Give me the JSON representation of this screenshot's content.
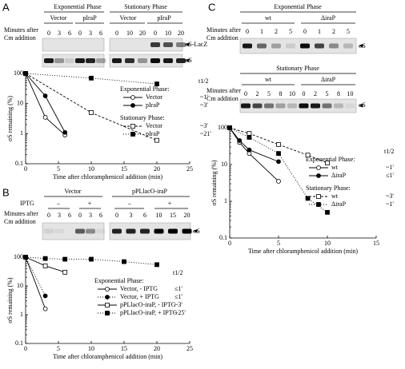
{
  "panels": [
    {
      "label": "A",
      "gel": {
        "headers": [
          "Exponential Phase",
          "Stationary Phase"
        ],
        "groups": [
          "Vector",
          "pIraP",
          "Vector",
          "pIraP"
        ],
        "row_label": [
          "Minutes after",
          "Cm addition"
        ],
        "lanes": [
          0,
          3,
          6,
          0,
          3,
          6,
          0,
          10,
          20,
          0,
          10,
          20
        ],
        "bands": [
          "σS-LacZ",
          "σS"
        ]
      }
    },
    {
      "label": "B",
      "gel": {
        "groups": [
          "Vector",
          "pPLlacO-iraP"
        ],
        "iptg_label": "IPTG",
        "iptg": [
          "–",
          "+",
          "–",
          "+"
        ],
        "row_label": [
          "Minutes after",
          "Cm addition"
        ],
        "lanes": [
          0,
          3,
          6,
          0,
          3,
          6,
          0,
          3,
          6,
          10,
          15,
          20
        ],
        "bands": [
          "σS"
        ]
      }
    },
    {
      "label": "C",
      "gels": [
        {
          "headers": [
            "Exponential Phase"
          ],
          "groups": [
            "wt",
            "ΔiraP"
          ],
          "row_label": [
            "Minutes after",
            "Cm addition"
          ],
          "lanes": [
            0,
            1,
            2,
            5,
            0,
            1,
            2,
            5
          ],
          "bands": [
            "σS"
          ]
        },
        {
          "headers": [
            "Stationary Phase"
          ],
          "groups": [
            "wt",
            "ΔiraP"
          ],
          "row_label": [
            "Minutes after",
            "Cm addition"
          ],
          "lanes": [
            0,
            2,
            5,
            8,
            10,
            0,
            2,
            5,
            8,
            10
          ],
          "bands": [
            "σS"
          ]
        }
      ]
    }
  ],
  "chart_data": [
    {
      "type": "line",
      "y_label": "σS remaining (%)",
      "x_label": "Time after chloramphenicol addition (min)",
      "y_scale": "log",
      "xlim": [
        0,
        25
      ],
      "xticks": [
        0,
        5,
        10,
        15,
        20,
        25
      ],
      "ylim": [
        0.1,
        100
      ],
      "yticks": [
        0.1,
        1,
        10,
        100
      ],
      "half_life_heading": "t1/2",
      "groups": [
        {
          "title": "Exponential Phase:",
          "series": [
            {
              "name": "Vector",
              "half_life": "~1'",
              "marker": "open-circle",
              "style": "solid",
              "color": "#000000",
              "x": [
                0,
                3,
                6
              ],
              "values": [
                100,
                3.5,
                0.9
              ]
            },
            {
              "name": "pIraP",
              "half_life": "~3'",
              "marker": "filled-circle",
              "style": "solid",
              "color": "#000000",
              "x": [
                0,
                3,
                6
              ],
              "values": [
                100,
                18,
                1.1
              ]
            }
          ]
        },
        {
          "title": "Stationary Phase:",
          "series": [
            {
              "name": "Vector",
              "half_life": "~3'",
              "marker": "open-square",
              "style": "dashed",
              "color": "#000000",
              "x": [
                0,
                10,
                20
              ],
              "values": [
                100,
                5,
                0.6
              ]
            },
            {
              "name": "pIraP",
              "half_life": "~21'",
              "marker": "filled-square",
              "style": "dotted",
              "color": "#000000",
              "x": [
                0,
                10,
                20
              ],
              "values": [
                100,
                70,
                45
              ]
            }
          ]
        }
      ]
    },
    {
      "type": "line",
      "y_label": "σS remaining (%)",
      "x_label": "Time after chloramphenicol addition (min)",
      "y_scale": "log",
      "xlim": [
        0,
        25
      ],
      "xticks": [
        0,
        5,
        10,
        15,
        20,
        25
      ],
      "ylim": [
        0.1,
        100
      ],
      "yticks": [
        0.1,
        1,
        10,
        100
      ],
      "half_life_heading": "t1/2",
      "groups": [
        {
          "title": "Exponential Phase:",
          "series": [
            {
              "name": "Vector, - IPTG",
              "half_life": "≤1'",
              "marker": "open-circle",
              "style": "solid",
              "color": "#000000",
              "x": [
                0,
                3
              ],
              "values": [
                100,
                1.6
              ]
            },
            {
              "name": "Vector, + IPTG",
              "half_life": "≤1'",
              "marker": "filled-circle",
              "style": "dotted",
              "color": "#000000",
              "x": [
                0,
                3
              ],
              "values": [
                100,
                4.5
              ]
            },
            {
              "name": "pPLlacO-iraP, - IPTG",
              "half_life": "~3'",
              "marker": "open-square",
              "style": "solid",
              "color": "#000000",
              "x": [
                0,
                3,
                6
              ],
              "values": [
                100,
                50,
                30
              ]
            },
            {
              "name": "pPLlacO-iraP, + IPTG",
              "half_life": "~25'",
              "marker": "filled-square",
              "style": "dotted",
              "color": "#000000",
              "x": [
                0,
                3,
                6,
                10,
                15,
                20
              ],
              "values": [
                100,
                90,
                85,
                85,
                70,
                55
              ]
            }
          ]
        }
      ]
    },
    {
      "type": "line",
      "y_label": "σS remaining (%)",
      "x_label": "Time after chloramphenicol addition (min)",
      "y_scale": "log",
      "xlim": [
        0,
        15
      ],
      "xticks": [
        0,
        5,
        10,
        15
      ],
      "ylim": [
        0.1,
        100
      ],
      "yticks": [
        0.1,
        1,
        10,
        100
      ],
      "half_life_heading": "t1/2",
      "groups": [
        {
          "title": "Exponential Phase:",
          "series": [
            {
              "name": "wt",
              "half_life": "~1'",
              "marker": "open-circle",
              "style": "solid",
              "color": "#000000",
              "x": [
                0,
                1,
                2,
                5
              ],
              "values": [
                100,
                40,
                20,
                3.5
              ]
            },
            {
              "name": "ΔiraP",
              "half_life": "≤1'",
              "marker": "filled-circle",
              "style": "solid",
              "color": "#000000",
              "x": [
                0,
                1,
                2,
                5
              ],
              "values": [
                100,
                45,
                25,
                12
              ]
            }
          ]
        },
        {
          "title": "Stationary Phase:",
          "series": [
            {
              "name": "wt",
              "half_life": "~3'",
              "marker": "open-square",
              "style": "dashed",
              "color": "#000000",
              "x": [
                0,
                2,
                5,
                8,
                10
              ],
              "values": [
                100,
                70,
                35,
                18,
                11
              ]
            },
            {
              "name": "ΔiraP",
              "half_life": "~1'",
              "marker": "filled-square",
              "style": "dotted",
              "color": "#000000",
              "x": [
                0,
                2,
                5,
                8,
                10
              ],
              "values": [
                100,
                55,
                20,
                1.2,
                0.5
              ]
            }
          ]
        }
      ]
    }
  ]
}
